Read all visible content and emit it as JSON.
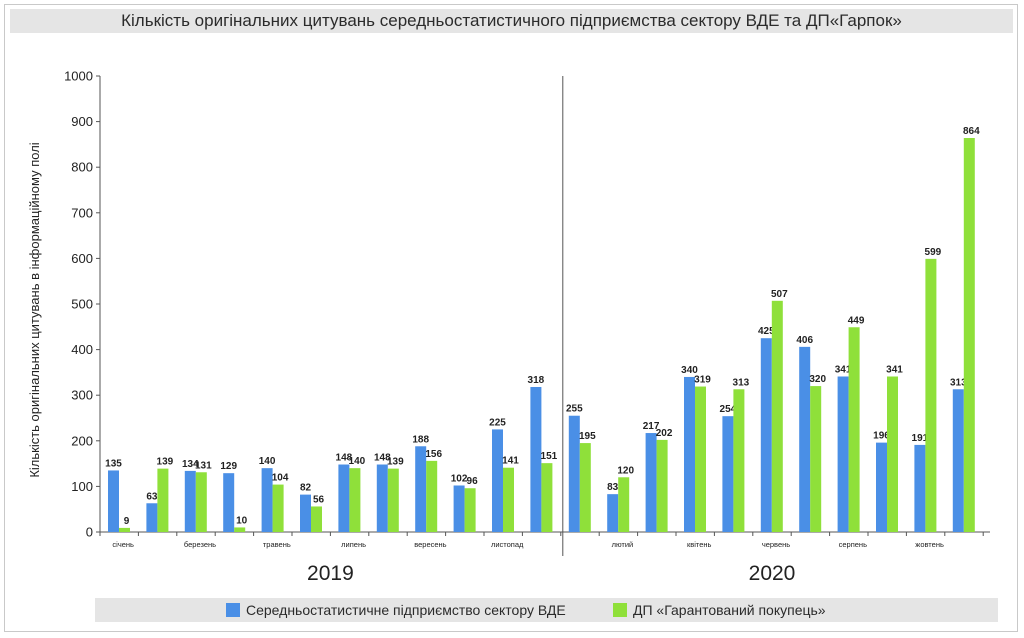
{
  "title": "Кількість оригінальних цитувань середньостатистичного підприємства сектору ВДЕ  та  ДП«Гарпок»",
  "colors": {
    "series1": "#4a8fe6",
    "series2": "#8fe03a",
    "axis": "#555555",
    "title_bg": "#e5e5e5"
  },
  "chart_data": {
    "type": "bar",
    "title": "Кількість оригінальних цитувань середньостатистичного підприємства сектору ВДЕ  та  ДП«Гарпок»",
    "ylabel": "Кількість оригінальних цитувань в інформаційному полі",
    "ylim": [
      0,
      1000
    ],
    "yticks": [
      0,
      100,
      200,
      300,
      400,
      500,
      600,
      700,
      800,
      900,
      1000
    ],
    "group_count": 23,
    "category_labels": [
      {
        "index": 0,
        "label": "січень"
      },
      {
        "index": 2,
        "label": "березень"
      },
      {
        "index": 4,
        "label": "травень"
      },
      {
        "index": 6,
        "label": "липень"
      },
      {
        "index": 8,
        "label": "вересень"
      },
      {
        "index": 10,
        "label": "листопад"
      },
      {
        "index": 13,
        "label": "лютий"
      },
      {
        "index": 15,
        "label": "квітень"
      },
      {
        "index": 17,
        "label": "червень"
      },
      {
        "index": 19,
        "label": "серпень"
      },
      {
        "index": 21,
        "label": "жовтень"
      }
    ],
    "years": [
      {
        "label": "2019",
        "start": 0,
        "end": 11
      },
      {
        "label": "2020",
        "start": 12,
        "end": 22
      }
    ],
    "divider_after_index": 11,
    "series": [
      {
        "name": "Середньостатистичне підприємство сектору ВДЕ",
        "values": [
          135,
          63,
          134,
          129,
          140,
          82,
          148,
          148,
          188,
          102,
          225,
          318,
          255,
          83,
          217,
          340,
          254,
          425,
          406,
          341,
          196,
          191,
          313
        ]
      },
      {
        "name": "ДП «Гарантований покупець»",
        "values": [
          9,
          139,
          131,
          10,
          104,
          56,
          140,
          139,
          156,
          96,
          141,
          151,
          195,
          120,
          202,
          319,
          313,
          507,
          320,
          449,
          341,
          599,
          864
        ]
      }
    ],
    "legend_position": "bottom",
    "grid": false
  }
}
